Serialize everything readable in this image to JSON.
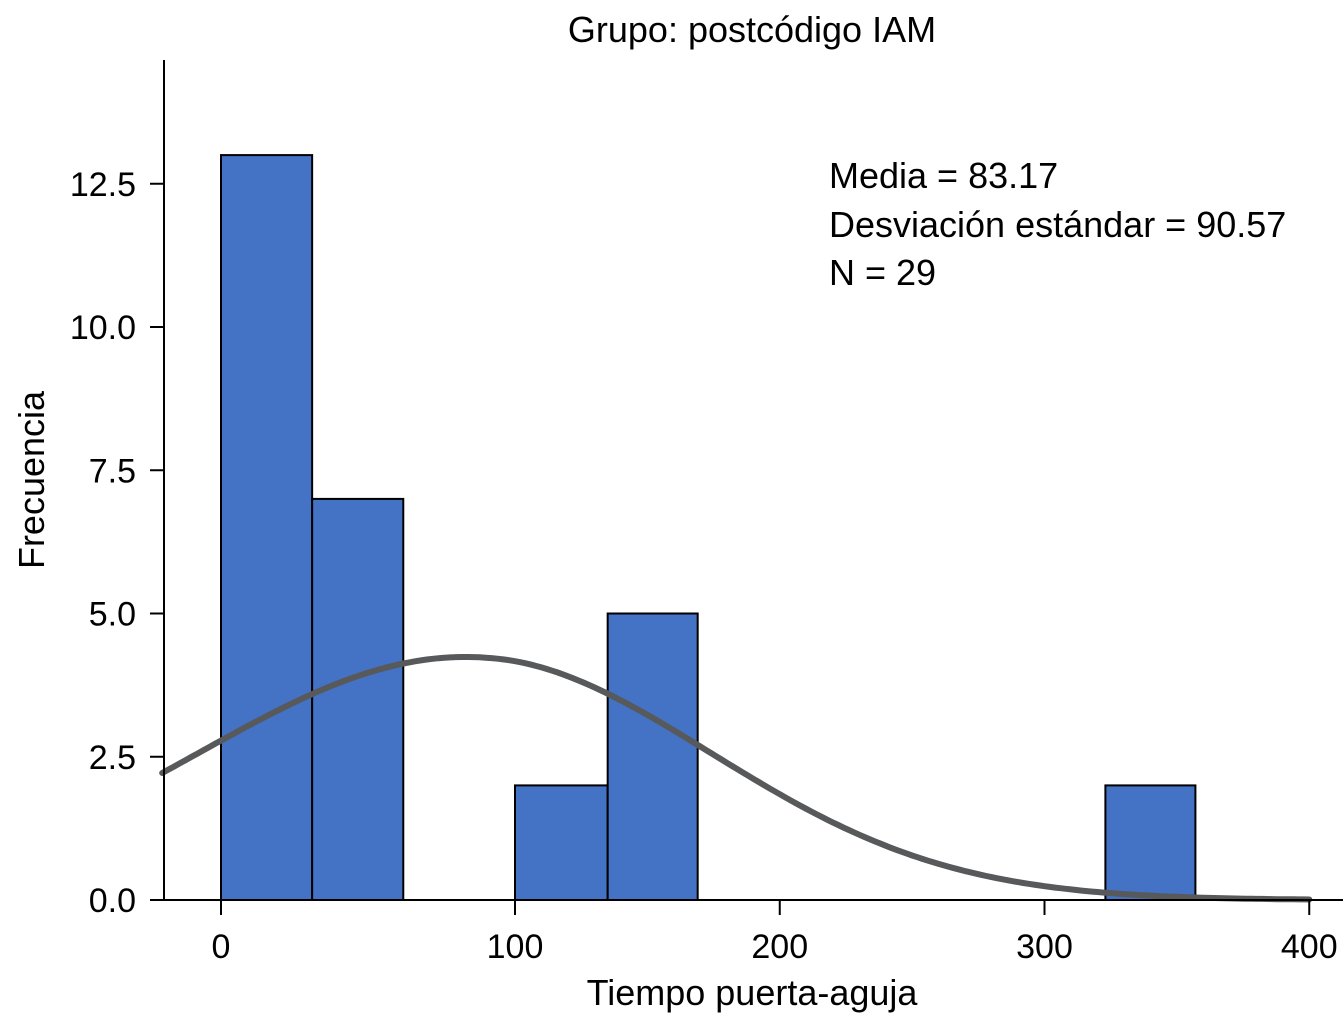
{
  "chart_data": {
    "type": "bar",
    "title": "Grupo: postcódigo IAM",
    "xlabel": "Tiempo puerta-aguja",
    "ylabel": "Frecuencia",
    "xlim": [
      -24,
      413
    ],
    "ylim": [
      0,
      14.66
    ],
    "xticks": [
      0,
      100,
      200,
      300,
      400
    ],
    "xtick_labels": [
      "0",
      "100",
      "200",
      "300",
      "400"
    ],
    "yticks": [
      0,
      2.5,
      5,
      7.5,
      10,
      12.5
    ],
    "ytick_labels": [
      "0.0",
      "2.5",
      "5.0",
      "7.5",
      "10.0",
      "12.5"
    ],
    "bins": [
      {
        "start": 0,
        "end": 31,
        "count": 13
      },
      {
        "start": 31,
        "end": 62,
        "count": 7
      },
      {
        "start": 100,
        "end": 135,
        "count": 2
      },
      {
        "start": 135,
        "end": 169,
        "count": 5
      },
      {
        "start": 323,
        "end": 357,
        "count": 2
      }
    ],
    "normal_curve": {
      "mean": 83.17,
      "sd": 90.57,
      "n": 29,
      "bin_width": 33.2,
      "x_range": [
        -20,
        400
      ]
    },
    "annotations": [
      "Media = 83.17",
      "Desviación estándar = 90.57",
      "N = 29"
    ],
    "bar_color": "#4472c4",
    "curve_color": "#58595b",
    "grid": false
  }
}
